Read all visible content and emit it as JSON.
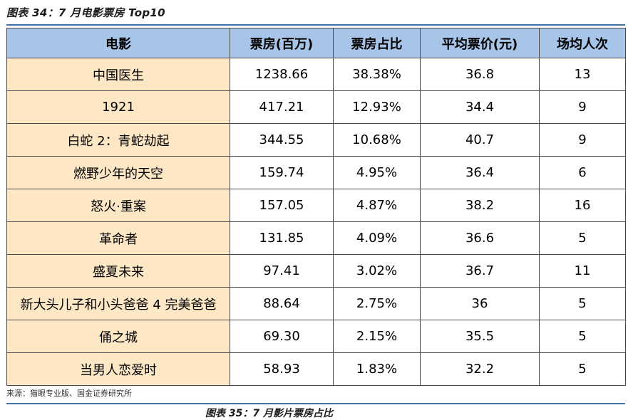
{
  "caption": "图表 34：7 月电影票房 Top10",
  "colors": {
    "header_bg": "#a7c5e9",
    "first_col_bg": "#fde7c5",
    "body_bg": "#ffffff",
    "rule": "#3c74a8"
  },
  "table": {
    "columns": [
      "电影",
      "票房(百万)",
      "票房占比",
      "平均票价(元)",
      "场均人次"
    ],
    "rows": [
      [
        "中国医生",
        "1238.66",
        "38.38%",
        "36.8",
        "13"
      ],
      [
        "1921",
        "417.21",
        "12.93%",
        "34.4",
        "9"
      ],
      [
        "白蛇 2：青蛇劫起",
        "344.55",
        "10.68%",
        "40.7",
        "9"
      ],
      [
        "燃野少年的天空",
        "159.74",
        "4.95%",
        "36.4",
        "6"
      ],
      [
        "怒火·重案",
        "157.05",
        "4.87%",
        "38.2",
        "16"
      ],
      [
        "革命者",
        "131.85",
        "4.09%",
        "36.6",
        "5"
      ],
      [
        "盛夏未来",
        "97.41",
        "3.02%",
        "36.7",
        "11"
      ],
      [
        "新大头儿子和小头爸爸 4 完美爸爸",
        "88.64",
        "2.75%",
        "36",
        "5"
      ],
      [
        "俑之城",
        "69.30",
        "2.15%",
        "35.5",
        "5"
      ],
      [
        "当男人恋爱时",
        "58.93",
        "1.83%",
        "32.2",
        "5"
      ]
    ]
  },
  "source": "来源：猫眼专业版、国金证券研究所",
  "next_caption": "图表 35：7 月影片票房占比"
}
